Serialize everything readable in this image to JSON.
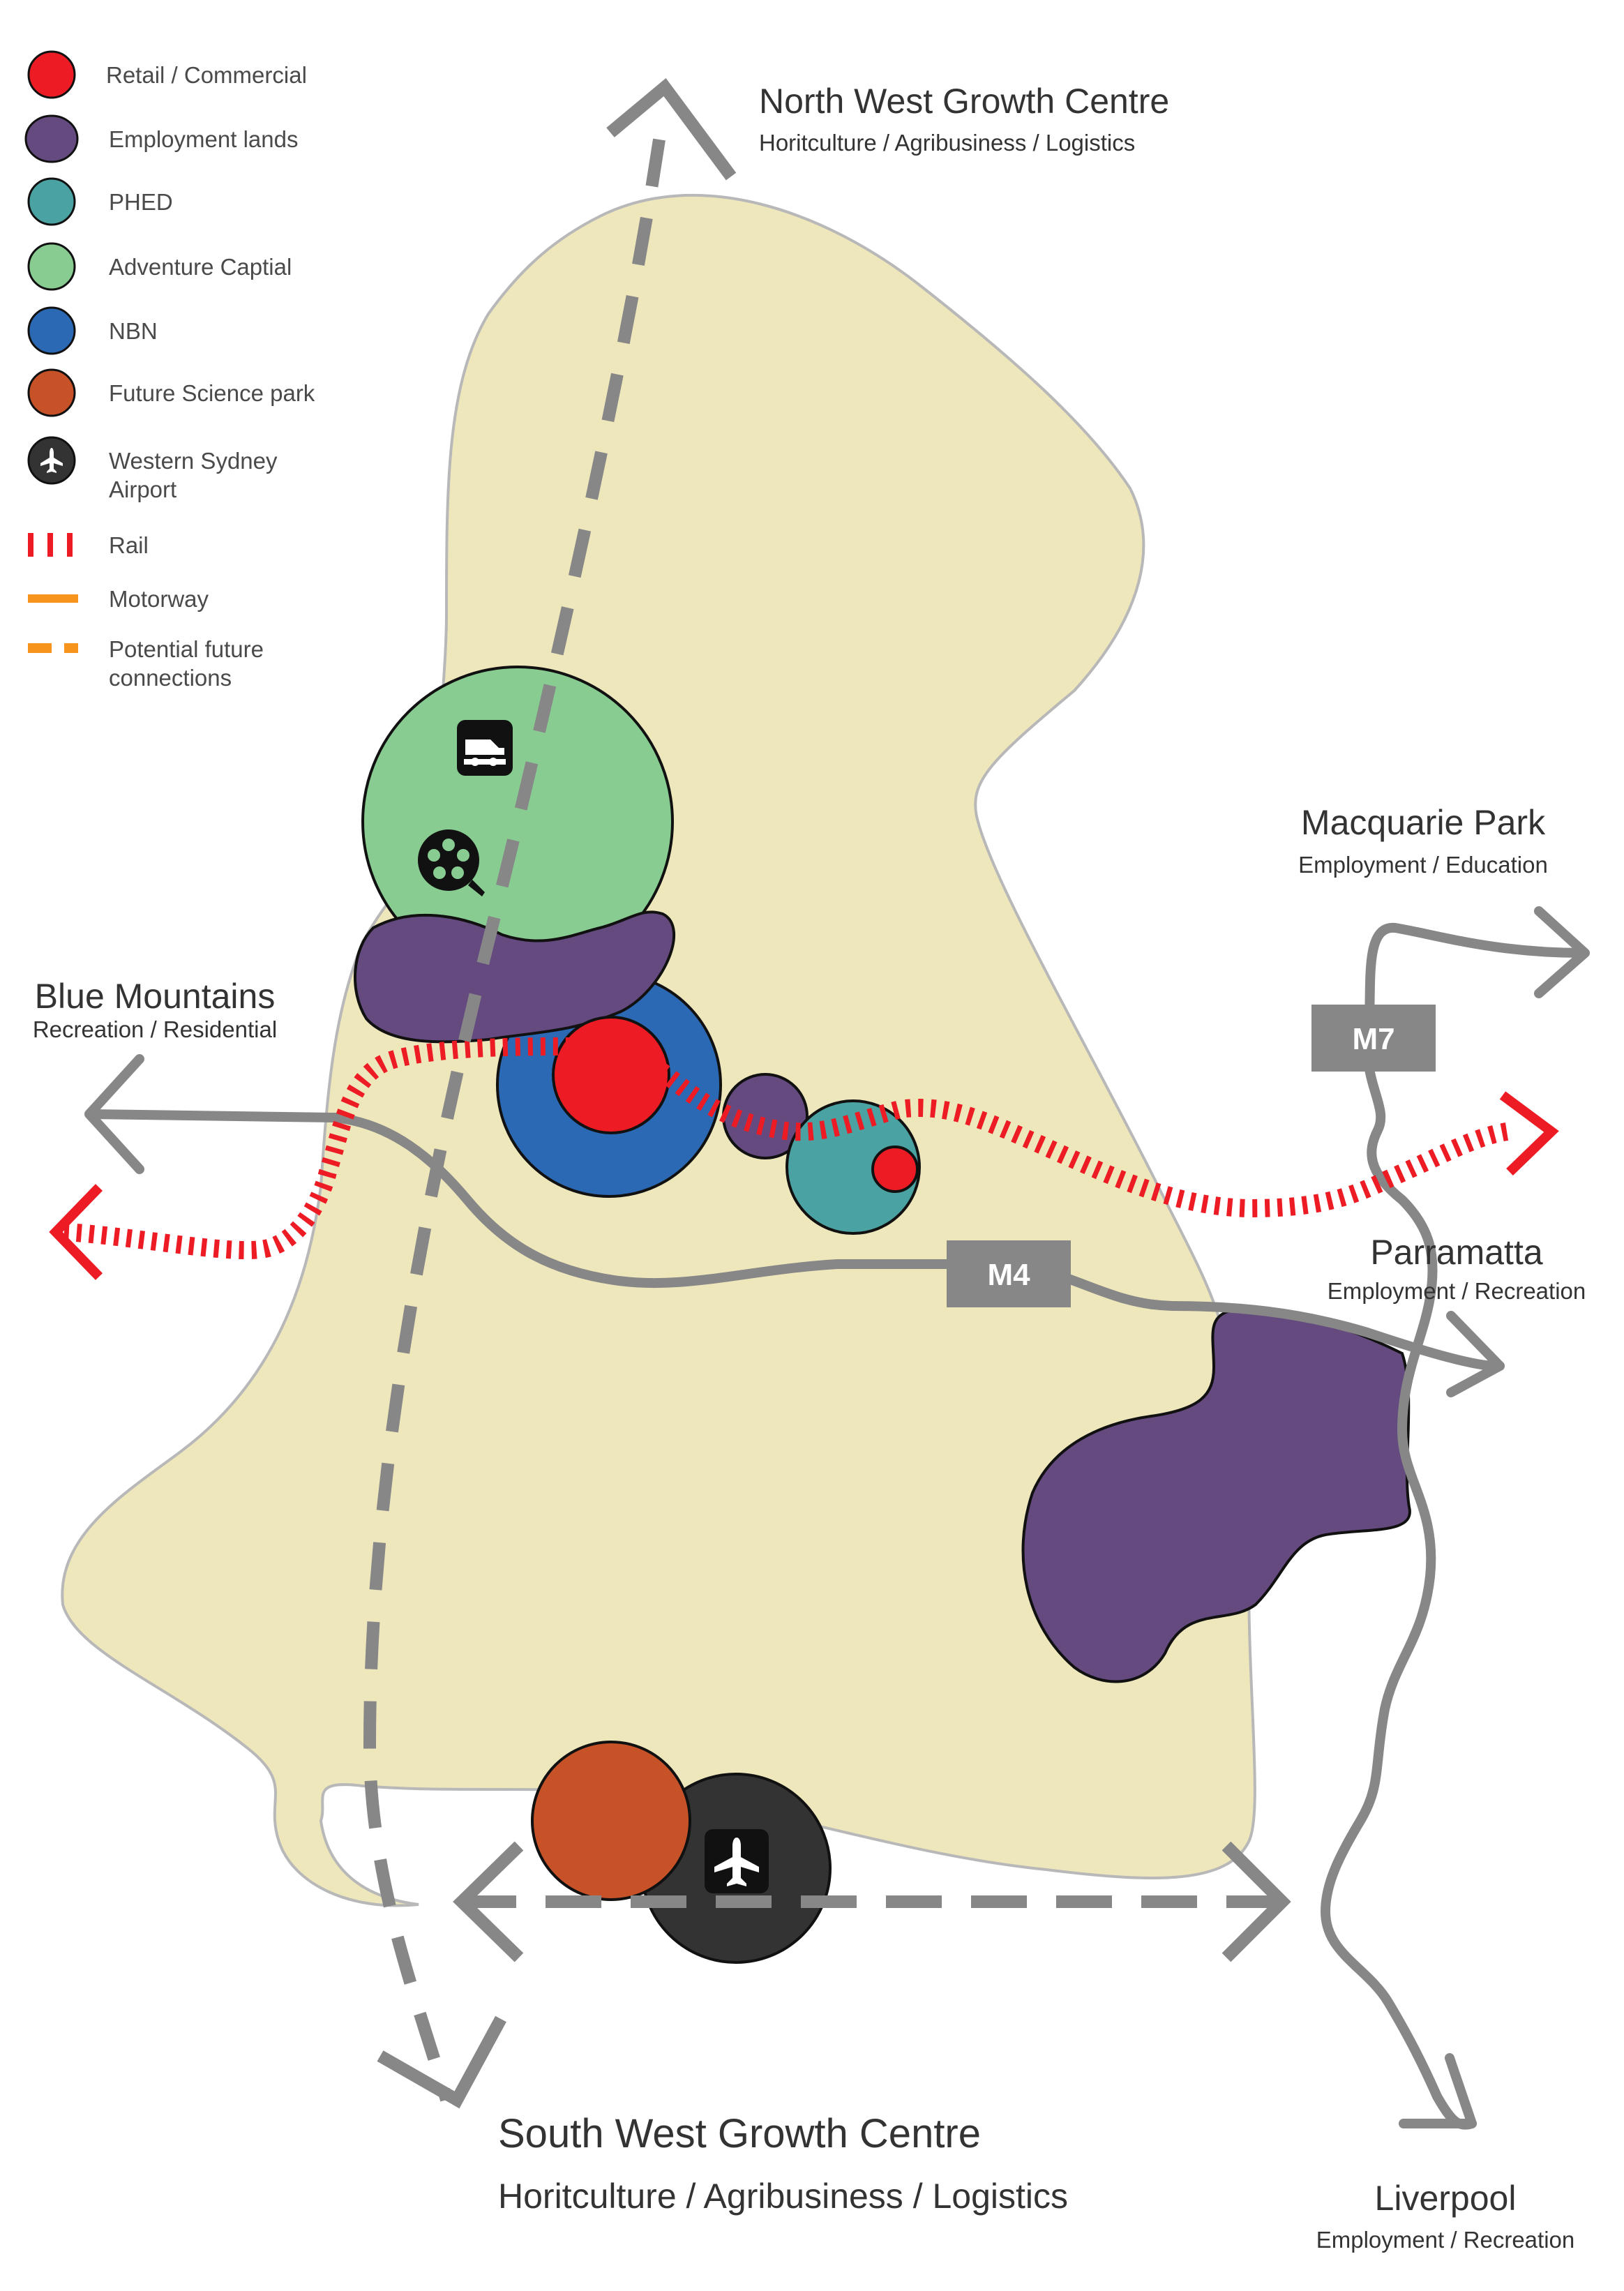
{
  "legend": {
    "items": [
      {
        "label": "Retail / Commercial",
        "color": "#ed1c24",
        "icon": "red-circle"
      },
      {
        "label": "Employment lands",
        "color": "#654a80",
        "icon": "purple-circle"
      },
      {
        "label": "PHED",
        "color": "#4aa3a2",
        "icon": "teal-circle"
      },
      {
        "label": "Adventure Captial",
        "color": "#88cc92",
        "icon": "green-circle"
      },
      {
        "label": "NBN",
        "color": "#2b69b5",
        "icon": "blue-circle"
      },
      {
        "label": "Future Science park",
        "color": "#c85228",
        "icon": "orange-circle"
      },
      {
        "label_line1": "Western Sydney",
        "label_line2": "Airport",
        "color": "#333333",
        "icon": "airport-icon"
      },
      {
        "label": "Rail",
        "color": "#ed1c24",
        "icon": "rail-dashes"
      },
      {
        "label": "Motorway",
        "color": "#f7941d",
        "icon": "motorway-line"
      },
      {
        "label_line1": "Potential future",
        "label_line2": "connections",
        "color": "#f7941d",
        "icon": "future-connection-dashes"
      }
    ]
  },
  "destinations": {
    "north_west": {
      "title": "North West Growth Centre",
      "subtitle": "Horitculture / Agribusiness / Logistics"
    },
    "macquarie": {
      "title": "Macquarie Park",
      "subtitle": "Employment / Education"
    },
    "blue_mountains": {
      "title": "Blue Mountains",
      "subtitle": "Recreation / Residential"
    },
    "parramatta": {
      "title": "Parramatta",
      "subtitle": "Employment / Recreation"
    },
    "south_west": {
      "title": "South West Growth Centre",
      "subtitle": "Horitculture / Agribusiness / Logistics"
    },
    "liverpool": {
      "title": "Liverpool",
      "subtitle": "Employment / Recreation"
    }
  },
  "roads": {
    "m7": "M7",
    "m4": "M4"
  },
  "colors": {
    "region": "#efe7bc",
    "region_outline": "#b8b8b8",
    "road": "#878787",
    "rail": "#ed1c24"
  }
}
